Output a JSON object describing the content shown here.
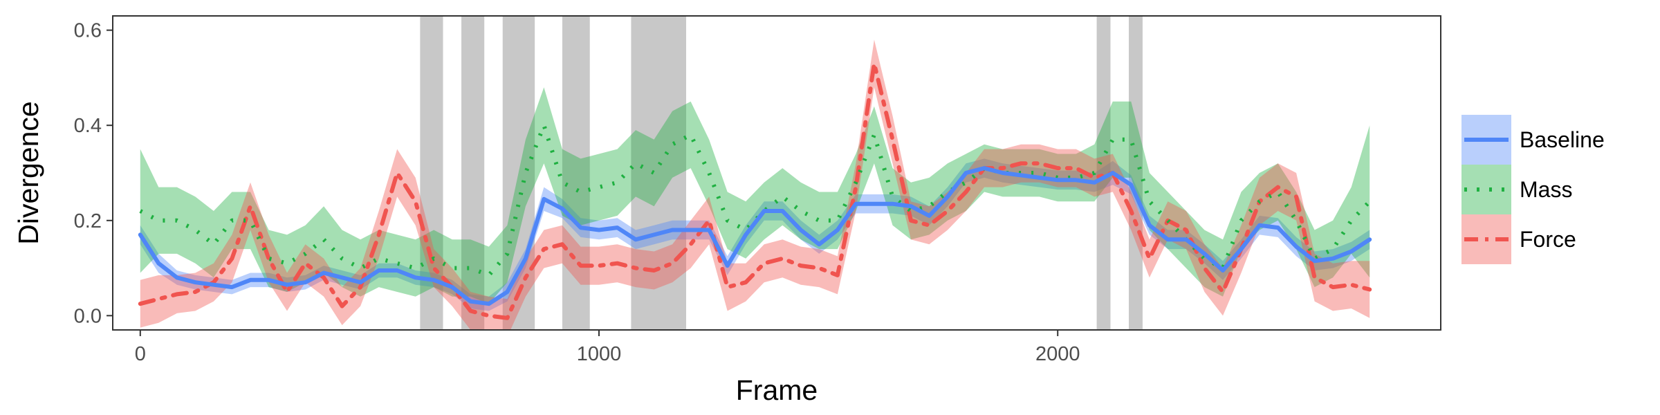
{
  "chart_data": {
    "type": "line",
    "xlabel": "Frame",
    "ylabel": "Divergence",
    "xlim": [
      -60,
      2835
    ],
    "ylim": [
      -0.03,
      0.63
    ],
    "x_ticks": [
      0,
      1000,
      2000
    ],
    "y_ticks": [
      0.0,
      0.2,
      0.4,
      0.6
    ],
    "x_tick_labels": [
      "0",
      "1000",
      "2000"
    ],
    "y_tick_labels": [
      "0.0",
      "0.2",
      "0.4",
      "0.6"
    ],
    "grid": false,
    "legend_position": "right",
    "shaded_regions": [
      [
        610,
        660
      ],
      [
        700,
        750
      ],
      [
        790,
        860
      ],
      [
        920,
        980
      ],
      [
        1070,
        1190
      ],
      [
        2085,
        2115
      ],
      [
        2155,
        2185
      ]
    ],
    "x": [
      0,
      40,
      80,
      120,
      160,
      200,
      240,
      280,
      320,
      360,
      400,
      440,
      480,
      520,
      560,
      600,
      640,
      680,
      720,
      760,
      800,
      840,
      880,
      920,
      960,
      1000,
      1040,
      1080,
      1120,
      1160,
      1200,
      1240,
      1280,
      1320,
      1360,
      1400,
      1440,
      1480,
      1520,
      1560,
      1600,
      1640,
      1680,
      1720,
      1760,
      1800,
      1840,
      1880,
      1920,
      1960,
      2000,
      2040,
      2080,
      2120,
      2160,
      2200,
      2240,
      2280,
      2320,
      2360,
      2400,
      2440,
      2480,
      2520,
      2560,
      2600,
      2640,
      2680
    ],
    "series": [
      {
        "name": "Baseline",
        "color": "#4f86f7",
        "dash": "solid",
        "values": [
          0.17,
          0.11,
          0.08,
          0.07,
          0.065,
          0.06,
          0.075,
          0.075,
          0.065,
          0.07,
          0.09,
          0.08,
          0.07,
          0.095,
          0.095,
          0.08,
          0.075,
          0.06,
          0.03,
          0.025,
          0.05,
          0.12,
          0.245,
          0.225,
          0.185,
          0.18,
          0.185,
          0.16,
          0.17,
          0.18,
          0.18,
          0.18,
          0.105,
          0.17,
          0.22,
          0.22,
          0.18,
          0.15,
          0.18,
          0.235,
          0.235,
          0.235,
          0.23,
          0.21,
          0.25,
          0.3,
          0.31,
          0.3,
          0.295,
          0.29,
          0.285,
          0.285,
          0.28,
          0.3,
          0.275,
          0.19,
          0.16,
          0.16,
          0.13,
          0.095,
          0.14,
          0.19,
          0.185,
          0.145,
          0.115,
          0.12,
          0.135,
          0.16
        ],
        "band": [
          0.02,
          0.02,
          0.015,
          0.015,
          0.015,
          0.015,
          0.015,
          0.015,
          0.015,
          0.015,
          0.015,
          0.015,
          0.015,
          0.015,
          0.015,
          0.015,
          0.015,
          0.015,
          0.015,
          0.015,
          0.02,
          0.02,
          0.025,
          0.02,
          0.02,
          0.02,
          0.02,
          0.02,
          0.02,
          0.02,
          0.02,
          0.02,
          0.02,
          0.02,
          0.02,
          0.02,
          0.02,
          0.02,
          0.02,
          0.02,
          0.02,
          0.02,
          0.02,
          0.02,
          0.02,
          0.02,
          0.02,
          0.02,
          0.02,
          0.02,
          0.02,
          0.02,
          0.02,
          0.025,
          0.02,
          0.02,
          0.02,
          0.02,
          0.02,
          0.02,
          0.02,
          0.02,
          0.02,
          0.02,
          0.02,
          0.02,
          0.02,
          0.02
        ]
      },
      {
        "name": "Mass",
        "color": "#1fb041",
        "dash": "dotted",
        "values": [
          0.22,
          0.2,
          0.2,
          0.18,
          0.15,
          0.2,
          0.2,
          0.12,
          0.11,
          0.13,
          0.16,
          0.12,
          0.1,
          0.12,
          0.11,
          0.1,
          0.12,
          0.1,
          0.1,
          0.085,
          0.13,
          0.3,
          0.4,
          0.28,
          0.26,
          0.27,
          0.28,
          0.32,
          0.3,
          0.36,
          0.38,
          0.3,
          0.2,
          0.18,
          0.22,
          0.25,
          0.22,
          0.2,
          0.2,
          0.28,
          0.38,
          0.25,
          0.22,
          0.23,
          0.26,
          0.28,
          0.31,
          0.3,
          0.3,
          0.3,
          0.29,
          0.29,
          0.3,
          0.37,
          0.37,
          0.24,
          0.2,
          0.16,
          0.12,
          0.1,
          0.2,
          0.24,
          0.26,
          0.2,
          0.12,
          0.14,
          0.2,
          0.24
        ],
        "band": [
          0.13,
          0.07,
          0.07,
          0.07,
          0.07,
          0.06,
          0.06,
          0.06,
          0.06,
          0.06,
          0.07,
          0.06,
          0.06,
          0.06,
          0.06,
          0.06,
          0.06,
          0.06,
          0.06,
          0.06,
          0.06,
          0.07,
          0.08,
          0.07,
          0.07,
          0.07,
          0.07,
          0.07,
          0.07,
          0.07,
          0.07,
          0.07,
          0.06,
          0.06,
          0.06,
          0.06,
          0.06,
          0.06,
          0.06,
          0.06,
          0.06,
          0.06,
          0.06,
          0.06,
          0.06,
          0.06,
          0.05,
          0.05,
          0.05,
          0.05,
          0.05,
          0.05,
          0.06,
          0.08,
          0.08,
          0.06,
          0.06,
          0.06,
          0.06,
          0.06,
          0.06,
          0.06,
          0.06,
          0.06,
          0.06,
          0.06,
          0.07,
          0.16
        ]
      },
      {
        "name": "Force",
        "color": "#f0544f",
        "dash": "dash-dot",
        "values": [
          0.025,
          0.035,
          0.045,
          0.05,
          0.07,
          0.12,
          0.23,
          0.12,
          0.05,
          0.11,
          0.08,
          0.02,
          0.06,
          0.17,
          0.3,
          0.24,
          0.1,
          0.06,
          0.01,
          0.0,
          -0.005,
          0.08,
          0.14,
          0.15,
          0.105,
          0.105,
          0.11,
          0.1,
          0.095,
          0.11,
          0.15,
          0.2,
          0.06,
          0.07,
          0.11,
          0.12,
          0.105,
          0.1,
          0.085,
          0.27,
          0.53,
          0.37,
          0.2,
          0.19,
          0.22,
          0.26,
          0.31,
          0.31,
          0.32,
          0.32,
          0.31,
          0.31,
          0.29,
          0.3,
          0.22,
          0.12,
          0.2,
          0.18,
          0.1,
          0.05,
          0.14,
          0.24,
          0.27,
          0.25,
          0.08,
          0.06,
          0.065,
          0.055
        ],
        "band": [
          0.05,
          0.05,
          0.04,
          0.04,
          0.04,
          0.05,
          0.05,
          0.05,
          0.04,
          0.04,
          0.04,
          0.04,
          0.04,
          0.05,
          0.05,
          0.05,
          0.04,
          0.04,
          0.04,
          0.04,
          0.04,
          0.04,
          0.04,
          0.04,
          0.04,
          0.04,
          0.04,
          0.04,
          0.04,
          0.04,
          0.05,
          0.05,
          0.05,
          0.04,
          0.04,
          0.04,
          0.04,
          0.04,
          0.04,
          0.05,
          0.05,
          0.05,
          0.04,
          0.04,
          0.04,
          0.04,
          0.04,
          0.04,
          0.04,
          0.04,
          0.04,
          0.04,
          0.04,
          0.04,
          0.04,
          0.04,
          0.04,
          0.04,
          0.05,
          0.05,
          0.05,
          0.05,
          0.05,
          0.05,
          0.05,
          0.05,
          0.05,
          0.06
        ]
      }
    ]
  }
}
